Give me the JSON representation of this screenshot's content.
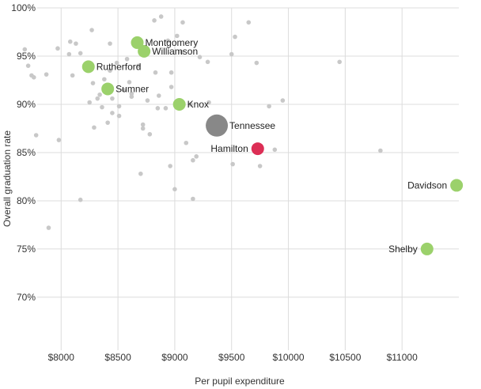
{
  "chart_data": {
    "type": "scatter",
    "title": "",
    "xlabel": "Per pupil expenditure",
    "ylabel": "Overall graduation rate",
    "xlim": [
      7650,
      11500
    ],
    "ylim": [
      64.5,
      100
    ],
    "grid": true,
    "x_ticks": [
      8000,
      8500,
      9000,
      9500,
      10000,
      10500,
      11000
    ],
    "x_tick_labels": [
      "$8000",
      "$8500",
      "$9000",
      "$9500",
      "$10000",
      "$10500",
      "$11000"
    ],
    "y_ticks": [
      70,
      75,
      80,
      85,
      90,
      95,
      100
    ],
    "y_tick_labels": [
      "70%",
      "75%",
      "80%",
      "85%",
      "90%",
      "95%",
      "100%"
    ],
    "colors": {
      "background_point": "#c8c8c8",
      "highlight_point": "#9bd16b",
      "state_point": "#888888",
      "focus_point": "#dc2e55",
      "grid": "#dcdcdc"
    },
    "highlighted": [
      {
        "label": "Montgomery",
        "x": 8670,
        "y": 96.4,
        "color": "#9bd16b"
      },
      {
        "label": "Williamson",
        "x": 8730,
        "y": 95.5,
        "color": "#9bd16b"
      },
      {
        "label": "Rutherford",
        "x": 8240,
        "y": 93.9,
        "color": "#9bd16b"
      },
      {
        "label": "Sumner",
        "x": 8410,
        "y": 91.6,
        "color": "#9bd16b"
      },
      {
        "label": "Knox",
        "x": 9040,
        "y": 90.0,
        "color": "#9bd16b"
      },
      {
        "label": "Tennessee",
        "x": 9370,
        "y": 87.8,
        "color": "#888888",
        "large": true
      },
      {
        "label": "Hamilton",
        "x": 9730,
        "y": 85.4,
        "color": "#dc2e55"
      },
      {
        "label": "Davidson",
        "x": 11480,
        "y": 81.6,
        "color": "#9bd16b"
      },
      {
        "label": "Shelby",
        "x": 11220,
        "y": 75.0,
        "color": "#9bd16b"
      }
    ],
    "others": [
      [
        7680,
        95.7
      ],
      [
        7710,
        94.0
      ],
      [
        7740,
        93.0
      ],
      [
        7760,
        92.8
      ],
      [
        7780,
        86.8
      ],
      [
        7870,
        93.1
      ],
      [
        7890,
        77.2
      ],
      [
        7970,
        95.8
      ],
      [
        7980,
        86.3
      ],
      [
        8070,
        95.2
      ],
      [
        8080,
        96.5
      ],
      [
        8100,
        93.0
      ],
      [
        8130,
        96.3
      ],
      [
        8170,
        95.3
      ],
      [
        8170,
        80.1
      ],
      [
        8230,
        94.2
      ],
      [
        8250,
        90.2
      ],
      [
        8270,
        97.7
      ],
      [
        8280,
        92.2
      ],
      [
        8290,
        87.6
      ],
      [
        8320,
        90.6
      ],
      [
        8340,
        91.0
      ],
      [
        8360,
        89.7
      ],
      [
        8380,
        92.6
      ],
      [
        8410,
        88.1
      ],
      [
        8430,
        93.5
      ],
      [
        8430,
        96.3
      ],
      [
        8450,
        90.6
      ],
      [
        8450,
        89.1
      ],
      [
        8490,
        94.3
      ],
      [
        8510,
        89.8
      ],
      [
        8510,
        88.8
      ],
      [
        8550,
        91.5
      ],
      [
        8580,
        94.7
      ],
      [
        8600,
        92.3
      ],
      [
        8620,
        91.1
      ],
      [
        8620,
        90.8
      ],
      [
        8680,
        94.0
      ],
      [
        8700,
        82.8
      ],
      [
        8720,
        87.9
      ],
      [
        8720,
        87.5
      ],
      [
        8760,
        90.4
      ],
      [
        8780,
        86.9
      ],
      [
        8820,
        98.7
      ],
      [
        8830,
        93.3
      ],
      [
        8850,
        89.6
      ],
      [
        8860,
        90.9
      ],
      [
        8880,
        99.1
      ],
      [
        8920,
        89.6
      ],
      [
        8960,
        83.6
      ],
      [
        8970,
        93.3
      ],
      [
        8970,
        91.8
      ],
      [
        9000,
        81.2
      ],
      [
        9060,
        95.4
      ],
      [
        9070,
        98.5
      ],
      [
        9100,
        86.0
      ],
      [
        9140,
        90.0
      ],
      [
        9160,
        80.2
      ],
      [
        9160,
        84.2
      ],
      [
        9190,
        84.6
      ],
      [
        9220,
        94.9
      ],
      [
        9290,
        94.4
      ],
      [
        9300,
        90.2
      ],
      [
        9300,
        88.1
      ],
      [
        9310,
        87.6
      ],
      [
        9500,
        95.2
      ],
      [
        9510,
        83.8
      ],
      [
        9530,
        97.0
      ],
      [
        9650,
        98.5
      ],
      [
        9720,
        94.3
      ],
      [
        9750,
        83.6
      ],
      [
        9830,
        89.8
      ],
      [
        9880,
        85.3
      ],
      [
        9950,
        90.4
      ],
      [
        10450,
        94.4
      ],
      [
        10810,
        85.2
      ],
      [
        8940,
        96.6
      ],
      [
        9020,
        97.1
      ]
    ]
  }
}
